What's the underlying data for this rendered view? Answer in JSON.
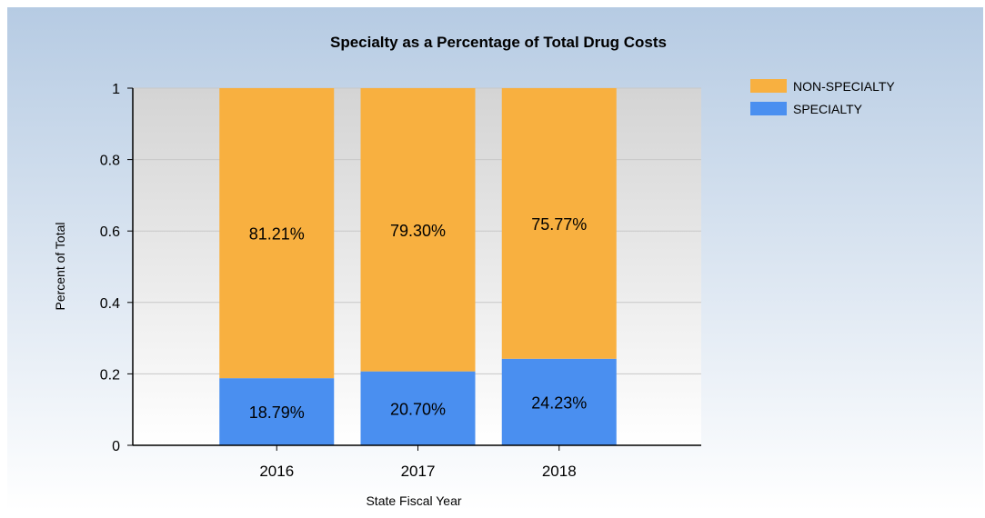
{
  "chart_data": {
    "type": "bar",
    "stacked": true,
    "title": "Specialty as a Percentage of Total Drug Costs",
    "xlabel": "State Fiscal Year",
    "ylabel": "Percent of Total",
    "categories": [
      "2016",
      "2017",
      "2018"
    ],
    "ylim": [
      0,
      1
    ],
    "yticks": [
      "0",
      "0.2",
      "0.4",
      "0.6",
      "0.8",
      "1"
    ],
    "ytick_values": [
      0,
      0.2,
      0.4,
      0.6,
      0.8,
      1
    ],
    "grid": true,
    "legend_position": "top-right",
    "series": [
      {
        "name": "SPECIALTY",
        "color": "#4a8ff0",
        "values": [
          0.1879,
          0.207,
          0.2423
        ],
        "labels": [
          "18.79%",
          "20.70%",
          "24.23%"
        ]
      },
      {
        "name": "NON-SPECIALTY",
        "color": "#f8b040",
        "values": [
          0.8121,
          0.793,
          0.7577
        ],
        "labels": [
          "81.21%",
          "79.30%",
          "75.77%"
        ]
      }
    ],
    "legend_order": [
      "NON-SPECIALTY",
      "SPECIALTY"
    ]
  },
  "colors": {
    "background_top": "#b6cbe3",
    "background_bottom": "#ffffff",
    "plot_top": "#d4d4d4",
    "plot_bottom": "#ffffff",
    "gridline": "#c8c8c8",
    "axis": "#000000",
    "text": "#000000"
  }
}
